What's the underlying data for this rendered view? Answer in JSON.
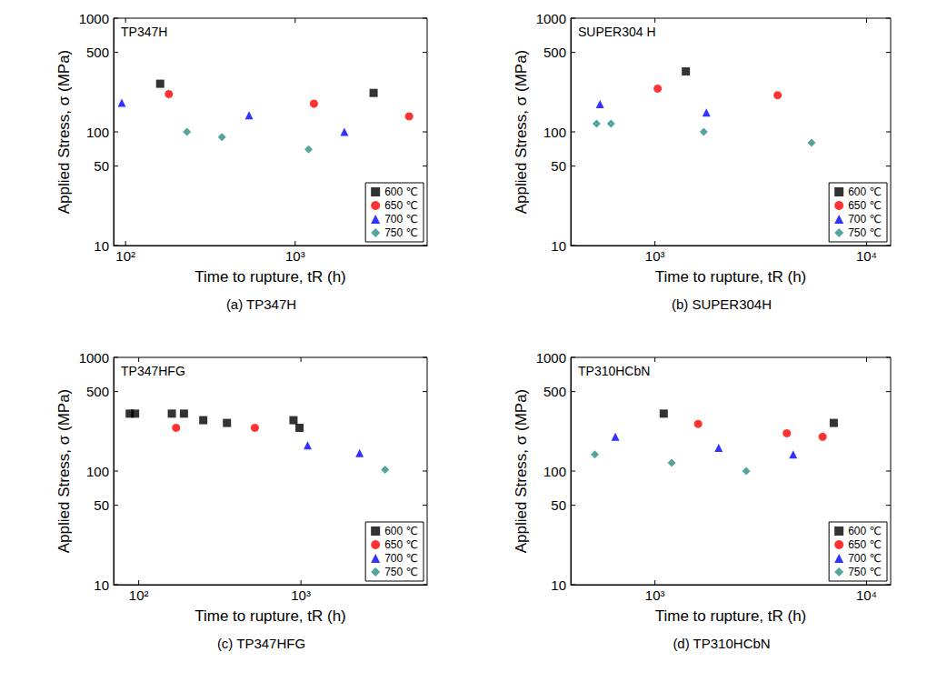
{
  "chart_data": [
    {
      "type": "scatter",
      "title": "TP347H",
      "caption": "(a) TP347H",
      "xlabel": "Time to rupture, tR (h)",
      "ylabel": "Applied Stress, σ (MPa)",
      "xlim": [
        85,
        6000
      ],
      "ylim": [
        10,
        1000
      ],
      "xticks": [
        {
          "value": 100,
          "label": "10²"
        },
        {
          "value": 1000,
          "label": "10³"
        }
      ],
      "yticks": [
        10,
        50,
        100,
        500,
        1000
      ],
      "log": true,
      "grid": false,
      "legend": "lower right",
      "series": [
        {
          "name": "600 ℃",
          "color": "#000000",
          "marker": "square",
          "x": [
            160,
            2900
          ],
          "values": [
            265,
            220
          ]
        },
        {
          "name": "650 ℃",
          "color": "#ff0000",
          "marker": "circle",
          "x": [
            180,
            1290,
            4700
          ],
          "values": [
            215,
            177,
            137
          ]
        },
        {
          "name": "700 ℃",
          "color": "#0000ff",
          "marker": "triangle",
          "x": [
            95,
            535,
            1950
          ],
          "values": [
            180,
            140,
            100
          ]
        },
        {
          "name": "750 ℃",
          "color": "#2b8f86",
          "marker": "diamond",
          "x": [
            230,
            370,
            1200
          ],
          "values": [
            100,
            90,
            70
          ]
        }
      ]
    },
    {
      "type": "scatter",
      "title": "SUPER304 H",
      "caption": "(b) SUPER304H",
      "xlabel": "Time to rupture, tR (h)",
      "ylabel": "Applied Stress, σ (MPa)",
      "xlim": [
        400,
        13000
      ],
      "ylim": [
        10,
        1000
      ],
      "xticks": [
        {
          "value": 1000,
          "label": "10³"
        },
        {
          "value": 10000,
          "label": "10⁴"
        }
      ],
      "yticks": [
        10,
        50,
        100,
        500,
        1000
      ],
      "log": true,
      "grid": false,
      "legend": "lower right",
      "series": [
        {
          "name": "600 ℃",
          "color": "#000000",
          "marker": "square",
          "x": [
            1400
          ],
          "values": [
            340
          ]
        },
        {
          "name": "650 ℃",
          "color": "#ff0000",
          "marker": "circle",
          "x": [
            1030,
            3800
          ],
          "values": [
            240,
            210
          ]
        },
        {
          "name": "700 ℃",
          "color": "#0000ff",
          "marker": "triangle",
          "x": [
            550,
            1750
          ],
          "values": [
            175,
            148
          ]
        },
        {
          "name": "750 ℃",
          "color": "#2b8f86",
          "marker": "diamond",
          "x": [
            530,
            620,
            1700,
            5500
          ],
          "values": [
            118,
            118,
            100,
            80
          ]
        }
      ]
    },
    {
      "type": "scatter",
      "title": "TP347HFG",
      "caption": "(c) TP347HFG",
      "xlabel": "Time to rupture, tR (h)",
      "ylabel": "Applied Stress, σ (MPa)",
      "xlim": [
        70,
        6000
      ],
      "ylim": [
        10,
        1000
      ],
      "xticks": [
        {
          "value": 100,
          "label": "10²"
        },
        {
          "value": 1000,
          "label": "10³"
        }
      ],
      "yticks": [
        10,
        50,
        100,
        500,
        1000
      ],
      "log": true,
      "grid": false,
      "legend": "lower right",
      "series": [
        {
          "name": "600 ℃",
          "color": "#000000",
          "marker": "square",
          "x": [
            88,
            95,
            160,
            190,
            250,
            350,
            900,
            980
          ],
          "values": [
            320,
            320,
            320,
            320,
            280,
            265,
            280,
            240
          ]
        },
        {
          "name": "650 ℃",
          "color": "#ff0000",
          "marker": "circle",
          "x": [
            170,
            520
          ],
          "values": [
            240,
            240
          ]
        },
        {
          "name": "700 ℃",
          "color": "#0000ff",
          "marker": "triangle",
          "x": [
            1100,
            2300
          ],
          "values": [
            168,
            144
          ]
        },
        {
          "name": "750 ℃",
          "color": "#2b8f86",
          "marker": "diamond",
          "x": [
            3300
          ],
          "values": [
            103
          ]
        }
      ]
    },
    {
      "type": "scatter",
      "title": "TP310HCbN",
      "caption": "(d) TP310HCbN",
      "xlabel": "Time to rupture, tR (h)",
      "ylabel": "Applied Stress, σ (MPa)",
      "xlim": [
        400,
        13000
      ],
      "ylim": [
        10,
        1000
      ],
      "xticks": [
        {
          "value": 1000,
          "label": "10³"
        },
        {
          "value": 10000,
          "label": "10⁴"
        }
      ],
      "yticks": [
        10,
        50,
        100,
        500,
        1000
      ],
      "log": true,
      "grid": false,
      "legend": "lower right",
      "series": [
        {
          "name": "600 ℃",
          "color": "#000000",
          "marker": "square",
          "x": [
            1100,
            7000
          ],
          "values": [
            320,
            265
          ]
        },
        {
          "name": "650 ℃",
          "color": "#ff0000",
          "marker": "circle",
          "x": [
            1600,
            4200,
            6200
          ],
          "values": [
            260,
            215,
            200
          ]
        },
        {
          "name": "700 ℃",
          "color": "#0000ff",
          "marker": "triangle",
          "x": [
            650,
            2000,
            4500
          ],
          "values": [
            200,
            160,
            140
          ]
        },
        {
          "name": "750 ℃",
          "color": "#2b8f86",
          "marker": "diamond",
          "x": [
            520,
            1200,
            2700
          ],
          "values": [
            140,
            118,
            100
          ]
        }
      ]
    }
  ]
}
